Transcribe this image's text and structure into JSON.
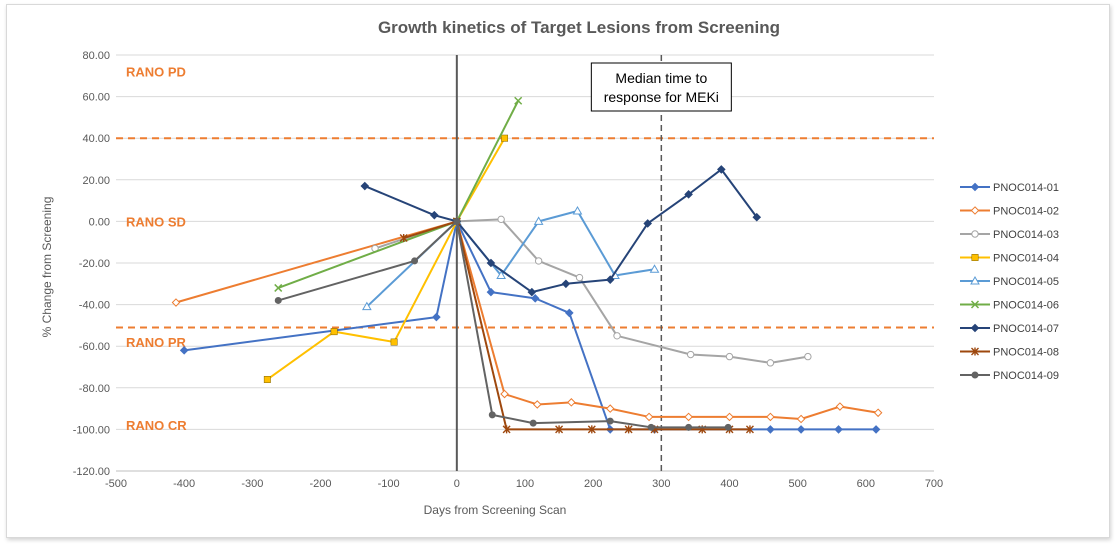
{
  "chart_data": {
    "type": "line",
    "title": "Growth kinetics of Target Lesions from Screening",
    "xlabel": "Days from Screening Scan",
    "ylabel": "% Change from Screening",
    "xlim": [
      -500,
      700
    ],
    "ylim": [
      -120,
      80
    ],
    "x_ticks": [
      -500,
      -400,
      -300,
      -200,
      -100,
      0,
      100,
      200,
      300,
      400,
      500,
      600,
      700
    ],
    "y_ticks": [
      80,
      60,
      40,
      20,
      0,
      -20,
      -40,
      -60,
      -80,
      -100,
      -120
    ],
    "x_tick_labels": [
      "-500",
      "-400",
      "-300",
      "-200",
      "-100",
      "0",
      "100",
      "200",
      "300",
      "400",
      "500",
      "600",
      "700"
    ],
    "y_tick_labels": [
      "80.00",
      "60.00",
      "40.00",
      "20.00",
      "0.00",
      "-20.00",
      "-40.00",
      "-60.00",
      "-80.00",
      "-100.00",
      "-120.00"
    ],
    "grid": "horizontal",
    "legend_position": "right",
    "thresholds": [
      {
        "y": 40,
        "color": "#ed7d31",
        "style": "dashed"
      },
      {
        "y": -51,
        "color": "#ed7d31",
        "style": "dashed"
      }
    ],
    "vertical_lines": [
      {
        "x": 0,
        "color": "#595959",
        "style": "solid"
      },
      {
        "x": 300,
        "color": "#595959",
        "style": "dashed"
      }
    ],
    "zone_labels": [
      {
        "text": "RANO PD",
        "y": 72
      },
      {
        "text": "RANO SD",
        "y": 0
      },
      {
        "text": "RANO PR",
        "y": -58
      },
      {
        "text": "RANO CR",
        "y": -98
      }
    ],
    "annotation": {
      "lines": [
        "Median time to",
        "response for MEKi"
      ],
      "x": 300
    },
    "series": [
      {
        "name": "PNOC014-01",
        "color": "#4472c4",
        "marker": "diamond",
        "x": [
          -400,
          -30,
          0,
          50,
          115,
          165,
          225,
          290,
          460,
          505,
          560,
          615
        ],
        "y": [
          -62,
          -46,
          0,
          -34,
          -37,
          -44,
          -100,
          -100,
          -100,
          -100,
          -100,
          -100
        ]
      },
      {
        "name": "PNOC014-02",
        "color": "#ed7d31",
        "marker": "diamond-open",
        "x": [
          -412,
          0,
          70,
          118,
          168,
          225,
          282,
          340,
          400,
          460,
          505,
          562,
          618
        ],
        "y": [
          -39,
          0,
          -83,
          -88,
          -87,
          -90,
          -94,
          -94,
          -94,
          -94,
          -95,
          -89,
          -92
        ]
      },
      {
        "name": "PNOC014-03",
        "color": "#a5a5a5",
        "marker": "circle-open",
        "x": [
          -120,
          0,
          65,
          120,
          180,
          235,
          343,
          400,
          460,
          515
        ],
        "y": [
          -13,
          0,
          1,
          -19,
          -27,
          -55,
          -64,
          -65,
          -68,
          -65
        ]
      },
      {
        "name": "PNOC014-04",
        "color": "#ffc000",
        "marker": "square",
        "x": [
          -278,
          -180,
          -92,
          0,
          70
        ],
        "y": [
          -76,
          -53,
          -58,
          0,
          40
        ]
      },
      {
        "name": "PNOC014-05",
        "color": "#5b9bd5",
        "marker": "triangle-open",
        "x": [
          -132,
          0,
          65,
          120,
          177,
          232,
          290
        ],
        "y": [
          -41,
          0,
          -26,
          0,
          5,
          -26,
          -23
        ]
      },
      {
        "name": "PNOC014-06",
        "color": "#70ad47",
        "marker": "x",
        "x": [
          -262,
          0,
          90
        ],
        "y": [
          -32,
          0,
          58
        ]
      },
      {
        "name": "PNOC014-07",
        "color": "#264478",
        "marker": "diamond",
        "x": [
          -135,
          -33,
          0,
          50,
          110,
          160,
          225,
          280,
          340,
          388,
          440
        ],
        "y": [
          17,
          3,
          0,
          -20,
          -34,
          -30,
          -28,
          -1,
          13,
          25,
          2
        ]
      },
      {
        "name": "PNOC014-08",
        "color": "#9e480e",
        "marker": "asterisk",
        "x": [
          -78,
          0,
          73,
          150,
          198,
          252,
          290,
          360,
          400,
          430
        ],
        "y": [
          -8,
          0,
          -100,
          -100,
          -100,
          -100,
          -100,
          -100,
          -100,
          -100
        ]
      },
      {
        "name": "PNOC014-09",
        "color": "#636363",
        "marker": "circle",
        "x": [
          -262,
          -62,
          0,
          52,
          112,
          225,
          285,
          340,
          398
        ],
        "y": [
          -38,
          -19,
          0,
          -93,
          -97,
          -96,
          -99,
          -99,
          -99
        ]
      }
    ]
  }
}
